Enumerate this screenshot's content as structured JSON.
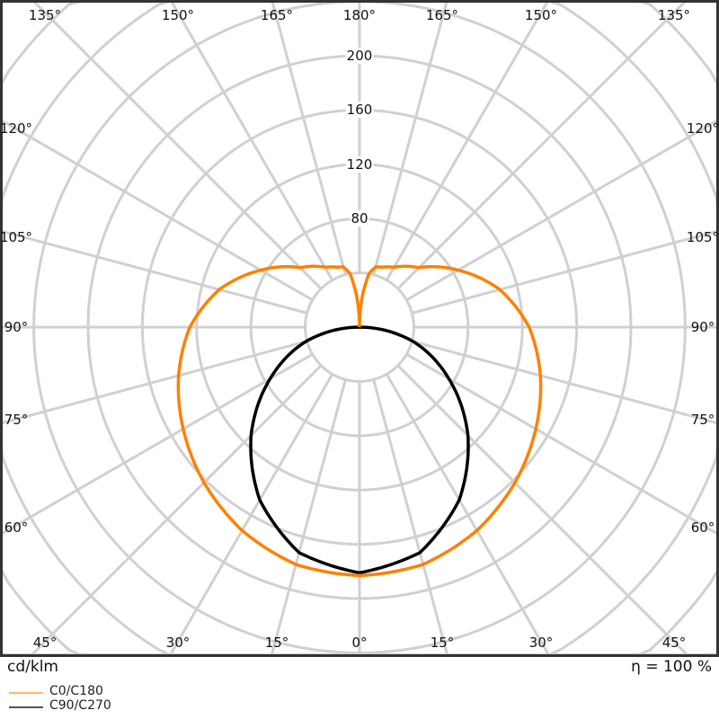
{
  "chart_data": {
    "type": "polar",
    "unit_label": "cd/klm",
    "efficiency_label": "η = 100 %",
    "radial_ticks": [
      80,
      120,
      160,
      200
    ],
    "radial_grid_step": 40,
    "grid": true,
    "angle_labels": {
      "top": [
        "135°",
        "150°",
        "165°",
        "180°",
        "165°",
        "150°",
        "135°"
      ],
      "left": [
        "120°",
        "105°",
        "90°",
        "75°",
        "60°"
      ],
      "right": [
        "120°",
        "105°",
        "90°",
        "75°",
        "60°"
      ],
      "bottom": [
        "45°",
        "30°",
        "15°",
        "0°",
        "15°",
        "30°",
        "45°"
      ]
    },
    "series": [
      {
        "name": "C0/C180",
        "color": "#ff8000",
        "legend_color": "#ffb870",
        "angles": [
          0,
          15,
          30,
          45,
          60,
          75,
          90,
          105,
          120,
          135,
          150,
          160,
          165,
          170,
          175,
          180
        ],
        "values": [
          183,
          181,
          173,
          162,
          150,
          138,
          125,
          107,
          84,
          62,
          51,
          47,
          46,
          40,
          22,
          0
        ]
      },
      {
        "name": "C90/C270",
        "color": "#000000",
        "legend_color": "#555555",
        "angles": [
          0,
          15,
          30,
          45,
          60,
          75,
          90,
          180
        ],
        "values": [
          181,
          172,
          147,
          113,
          76,
          41,
          0,
          0
        ]
      }
    ],
    "legend_placement": "bottom-left"
  }
}
